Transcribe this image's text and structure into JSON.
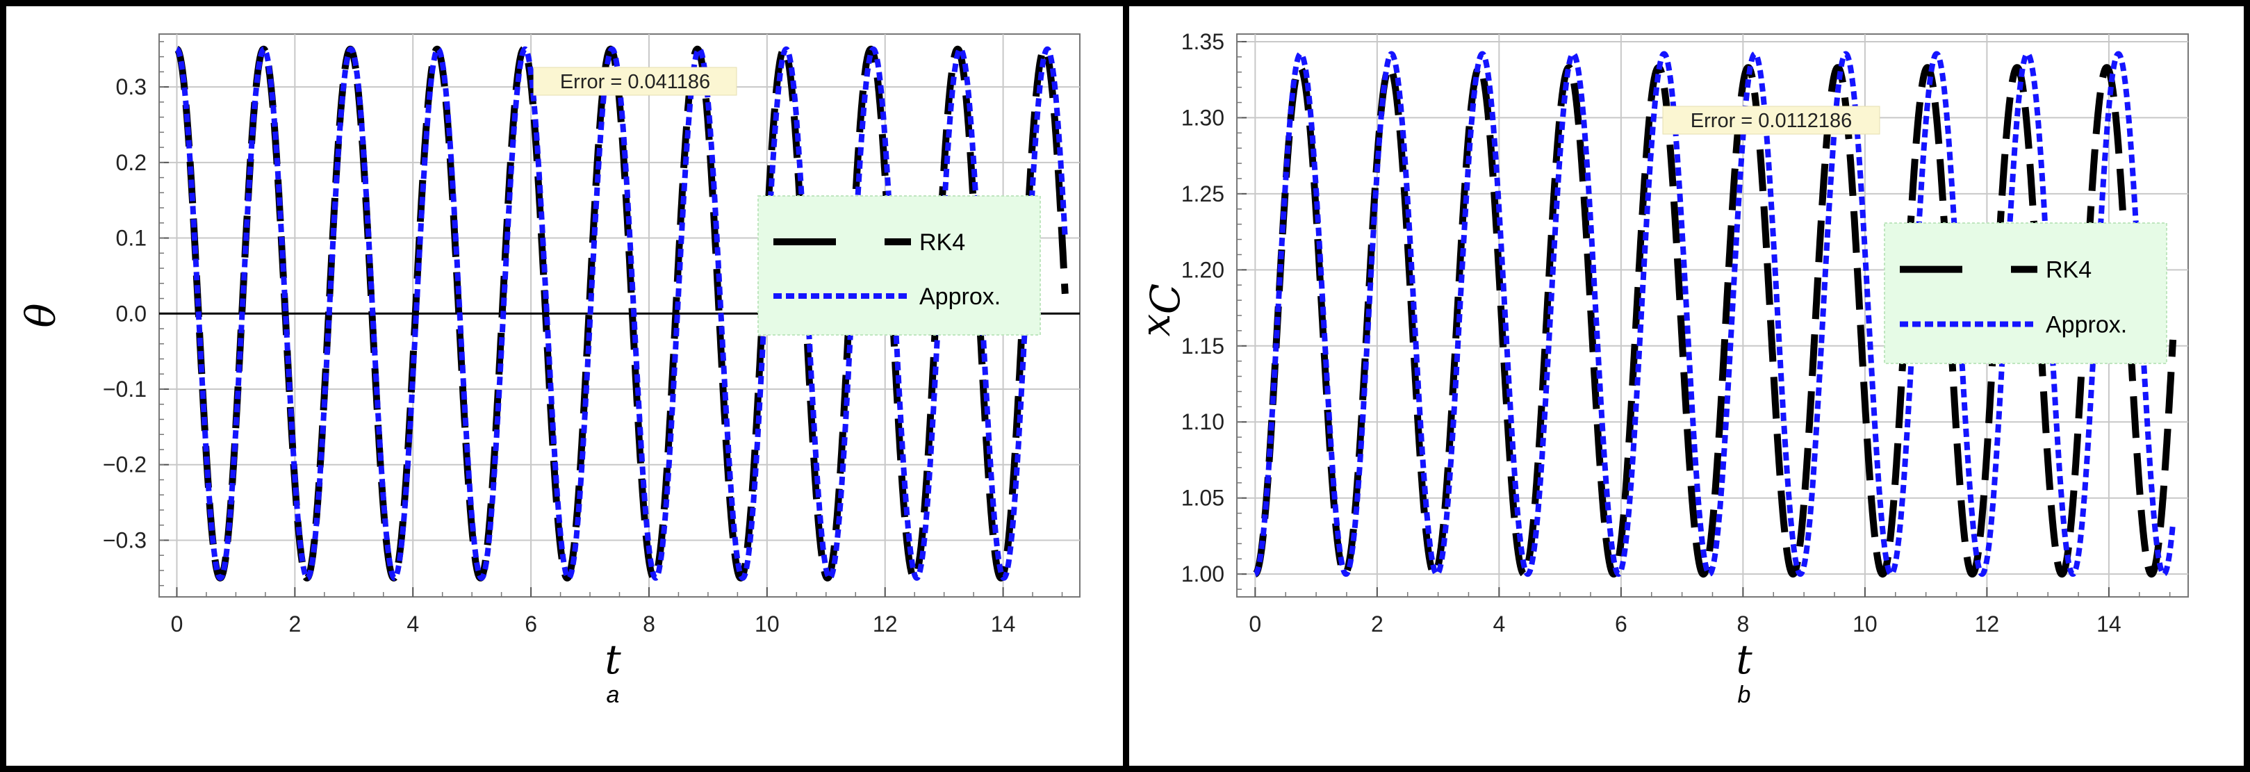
{
  "colors": {
    "rk4": "#000000",
    "approx": "#1414ff",
    "legend_bg": "#e6fbe6",
    "error_bg": "#fbf6d2",
    "grid": "#c8c8c8"
  },
  "chart_data": [
    {
      "type": "line",
      "panel_label": "a",
      "xlabel": "t",
      "ylabel": "θ",
      "xlim": [
        -0.3,
        15.3
      ],
      "ylim": [
        -0.375,
        0.37
      ],
      "x_ticks": [
        "0",
        "2",
        "4",
        "6",
        "8",
        "10",
        "12",
        "14"
      ],
      "y_ticks": [
        "0.3",
        "0.2",
        "0.1",
        "0.0",
        "-0.1",
        "-0.2",
        "-0.3"
      ],
      "grid": true,
      "zero_line": true,
      "annotation": "Error = 0.041186",
      "legend": {
        "placement": "right",
        "entries": [
          "RK4",
          "Approx."
        ]
      },
      "series": [
        {
          "name": "RK4",
          "style": "long-dash black",
          "function": "0.35*cos(2*pi*t/1.47)",
          "x_range": [
            0,
            15.05
          ],
          "amplitude": 0.35,
          "period": 1.47
        },
        {
          "name": "Approx.",
          "style": "dotted blue",
          "function": "0.35*cos(2*pi*t/1.475)",
          "x_range": [
            0,
            15.05
          ],
          "amplitude": 0.35,
          "period": 1.475
        }
      ]
    },
    {
      "type": "line",
      "panel_label": "b",
      "xlabel": "t",
      "ylabel": "x_C",
      "ylabel_main": "x",
      "ylabel_sub": "C",
      "xlim": [
        -0.3,
        15.3
      ],
      "ylim": [
        0.985,
        1.355
      ],
      "x_ticks": [
        "0",
        "2",
        "4",
        "6",
        "8",
        "10",
        "12",
        "14"
      ],
      "y_ticks": [
        "1.35",
        "1.30",
        "1.25",
        "1.20",
        "1.15",
        "1.10",
        "1.05",
        "1.00"
      ],
      "grid": true,
      "annotation": "Error = 0.0112186",
      "legend": {
        "placement": "right",
        "entries": [
          "RK4",
          "Approx."
        ]
      },
      "series": [
        {
          "name": "RK4",
          "style": "long-dash black",
          "function": "1.167-0.167*cos(2*pi*t/1.47)",
          "x_range": [
            0,
            15.05
          ],
          "min": 1.0,
          "max": 1.333,
          "period": 1.47
        },
        {
          "name": "Approx.",
          "style": "dotted blue",
          "function": "1.171-0.171*cos(2*pi*t/1.49)",
          "x_range": [
            0,
            15.05
          ],
          "min": 1.0,
          "max": 1.342,
          "period": 1.49
        }
      ]
    }
  ]
}
